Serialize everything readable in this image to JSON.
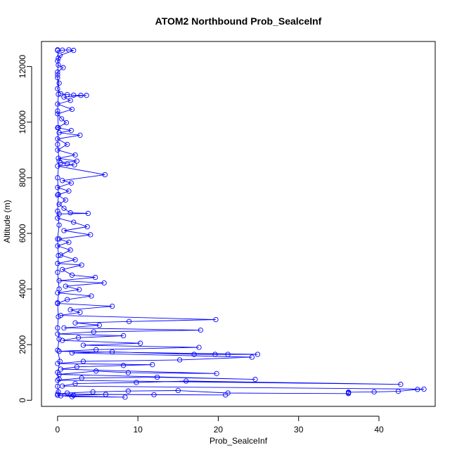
{
  "chart_data": {
    "type": "line",
    "title": "ATOM2 Northbound Prob_SealceInf",
    "xlabel": "Prob_SealceInf",
    "ylabel": "Altitude (m)",
    "xlim": [
      -2,
      47
    ],
    "ylim": [
      -220,
      12900
    ],
    "xticks": [
      0,
      10,
      20,
      30,
      40
    ],
    "yticks": [
      0,
      2000,
      4000,
      6000,
      8000,
      10000,
      12000
    ],
    "grid": false,
    "marker": "open-circle",
    "color": "#0000ff",
    "series": [
      {
        "name": "Prob_SealceInf",
        "points": [
          [
            0.0,
            12580
          ],
          [
            0.6,
            12590
          ],
          [
            1.4,
            12600
          ],
          [
            2.0,
            12580
          ],
          [
            0.3,
            12400
          ],
          [
            0.0,
            12200
          ],
          [
            0.1,
            12050
          ],
          [
            0.7,
            11960
          ],
          [
            0.0,
            11800
          ],
          [
            0.0,
            11600
          ],
          [
            0.2,
            11400
          ],
          [
            0.0,
            11200
          ],
          [
            0.4,
            11020
          ],
          [
            1.2,
            10990
          ],
          [
            2.0,
            10970
          ],
          [
            2.9,
            10960
          ],
          [
            3.6,
            10960
          ],
          [
            0.8,
            10900
          ],
          [
            1.6,
            10780
          ],
          [
            0.0,
            10650
          ],
          [
            1.8,
            10460
          ],
          [
            0.0,
            10300
          ],
          [
            0.5,
            10120
          ],
          [
            1.1,
            9980
          ],
          [
            0.0,
            9800
          ],
          [
            1.7,
            9700
          ],
          [
            0.2,
            9620
          ],
          [
            2.8,
            9530
          ],
          [
            0.0,
            9400
          ],
          [
            1.2,
            9200
          ],
          [
            0.0,
            9000
          ],
          [
            2.2,
            8820
          ],
          [
            0.1,
            8700
          ],
          [
            2.4,
            8600
          ],
          [
            0.4,
            8540
          ],
          [
            1.2,
            8500
          ],
          [
            2.1,
            8460
          ],
          [
            0.0,
            8420
          ],
          [
            5.9,
            8110
          ],
          [
            0.6,
            7900
          ],
          [
            1.7,
            7810
          ],
          [
            0.0,
            7650
          ],
          [
            1.4,
            7520
          ],
          [
            0.0,
            7380
          ],
          [
            1.0,
            7200
          ],
          [
            0.2,
            7050
          ],
          [
            0.8,
            6900
          ],
          [
            1.6,
            6740
          ],
          [
            3.8,
            6720
          ],
          [
            0.2,
            6700
          ],
          [
            0.0,
            6550
          ],
          [
            2.0,
            6400
          ],
          [
            3.7,
            6240
          ],
          [
            0.8,
            6100
          ],
          [
            4.1,
            5950
          ],
          [
            0.2,
            5800
          ],
          [
            1.4,
            5680
          ],
          [
            0.0,
            5550
          ],
          [
            1.6,
            5400
          ],
          [
            0.4,
            5220
          ],
          [
            2.2,
            5050
          ],
          [
            0.0,
            4920
          ],
          [
            3.0,
            4860
          ],
          [
            0.6,
            4700
          ],
          [
            1.8,
            4500
          ],
          [
            4.7,
            4420
          ],
          [
            0.2,
            4300
          ],
          [
            5.8,
            4220
          ],
          [
            1.0,
            4100
          ],
          [
            2.7,
            3980
          ],
          [
            0.0,
            3860
          ],
          [
            4.2,
            3750
          ],
          [
            1.2,
            3620
          ],
          [
            0.0,
            3480
          ],
          [
            6.8,
            3380
          ],
          [
            1.6,
            3250
          ],
          [
            2.8,
            3160
          ],
          [
            0.4,
            3050
          ],
          [
            19.7,
            2900
          ],
          [
            8.9,
            2830
          ],
          [
            2.2,
            2780
          ],
          [
            5.2,
            2700
          ],
          [
            0.8,
            2600
          ],
          [
            17.8,
            2520
          ],
          [
            4.5,
            2460
          ],
          [
            0.0,
            2380
          ],
          [
            8.2,
            2320
          ],
          [
            2.6,
            2250
          ],
          [
            0.6,
            2150
          ],
          [
            10.3,
            2050
          ],
          [
            3.2,
            1980
          ],
          [
            17.6,
            1900
          ],
          [
            4.8,
            1820
          ],
          [
            0.2,
            1760
          ],
          [
            24.9,
            1650
          ],
          [
            21.2,
            1650
          ],
          [
            19.6,
            1650
          ],
          [
            17.0,
            1650
          ],
          [
            6.8,
            1740
          ],
          [
            1.8,
            1700
          ],
          [
            24.2,
            1550
          ],
          [
            15.2,
            1450
          ],
          [
            3.2,
            1400
          ],
          [
            0.0,
            1320
          ],
          [
            11.8,
            1280
          ],
          [
            8.2,
            1250
          ],
          [
            2.4,
            1200
          ],
          [
            0.4,
            1120
          ],
          [
            19.8,
            960
          ],
          [
            8.8,
            990
          ],
          [
            4.8,
            1050
          ],
          [
            0.2,
            930
          ],
          [
            24.6,
            750
          ],
          [
            12.4,
            830
          ],
          [
            3.0,
            800
          ],
          [
            0.0,
            720
          ],
          [
            42.7,
            570
          ],
          [
            16.0,
            690
          ],
          [
            9.8,
            640
          ],
          [
            2.2,
            600
          ],
          [
            0.6,
            510
          ],
          [
            45.6,
            400
          ],
          [
            44.8,
            390
          ],
          [
            42.4,
            320
          ],
          [
            39.4,
            300
          ],
          [
            36.2,
            290
          ],
          [
            36.2,
            270
          ],
          [
            36.2,
            240
          ],
          [
            21.2,
            260
          ],
          [
            15.0,
            350
          ],
          [
            8.8,
            330
          ],
          [
            4.4,
            300
          ],
          [
            1.2,
            260
          ],
          [
            0.0,
            220
          ],
          [
            20.9,
            190
          ],
          [
            12.0,
            200
          ],
          [
            6.0,
            210
          ],
          [
            2.0,
            180
          ],
          [
            0.4,
            160
          ],
          [
            8.4,
            110
          ],
          [
            1.8,
            130
          ],
          [
            0.0,
            180
          ],
          [
            0.1,
            300
          ],
          [
            0.0,
            500
          ],
          [
            0.2,
            760
          ],
          [
            0.0,
            1000
          ],
          [
            0.3,
            1400
          ],
          [
            0.0,
            1800
          ],
          [
            0.2,
            2200
          ],
          [
            0.0,
            2600
          ],
          [
            0.1,
            3000
          ],
          [
            0.0,
            3500
          ],
          [
            0.2,
            4000
          ],
          [
            0.0,
            4600
          ],
          [
            0.1,
            5200
          ],
          [
            0.0,
            5800
          ],
          [
            0.2,
            6300
          ],
          [
            0.0,
            6800
          ],
          [
            0.1,
            7400
          ],
          [
            0.0,
            8000
          ],
          [
            0.2,
            8600
          ],
          [
            0.0,
            9200
          ],
          [
            0.1,
            9800
          ],
          [
            0.0,
            10400
          ],
          [
            0.1,
            11000
          ],
          [
            0.0,
            11700
          ],
          [
            0.1,
            12300
          ],
          [
            0.0,
            12600
          ]
        ]
      }
    ]
  }
}
